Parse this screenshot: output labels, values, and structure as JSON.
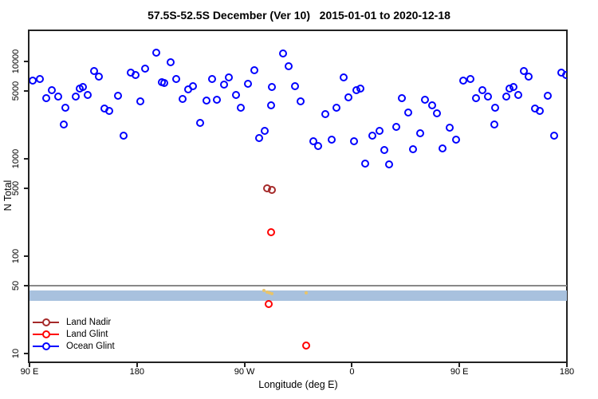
{
  "window": {
    "background": "#ffffff"
  },
  "chart_data": {
    "type": "scatter",
    "title": "57.5S-52.5S December (Ver 10)   2015-01-01 to 2020-12-18",
    "xlabel": "Longitude (deg E)",
    "ylabel": "N Total",
    "x_axis": {
      "unit": "deg E",
      "start_lon": 90,
      "span_deg": 450,
      "note": "axis wraps: 90E to 180 going eastward 450 degrees; lons 90E-180E plotted twice",
      "ticks": [
        {
          "label": "90 E",
          "offset_deg": 0
        },
        {
          "label": "180",
          "offset_deg": 90
        },
        {
          "label": "90 W",
          "offset_deg": 180
        },
        {
          "label": "0",
          "offset_deg": 270
        },
        {
          "label": "90 E",
          "offset_deg": 360
        },
        {
          "label": "180",
          "offset_deg": 450
        }
      ]
    },
    "y_axis": {
      "scale": "log",
      "range": [
        8,
        21000
      ],
      "ticks": [
        {
          "label": "10000",
          "value": 10000
        },
        {
          "label": "5000",
          "value": 5000
        },
        {
          "label": "1000",
          "value": 1000
        },
        {
          "label": "500",
          "value": 500
        },
        {
          "label": "100",
          "value": 100
        },
        {
          "label": "50",
          "value": 50
        },
        {
          "label": "10",
          "value": 10
        }
      ]
    },
    "reference_line": {
      "value": 50,
      "color": "#888888"
    },
    "band": {
      "value_from": 35,
      "value_to": 44,
      "color": "#A8C1DE"
    },
    "series": [
      {
        "name": "Land Nadir",
        "color": "#A52A2A",
        "points": [
          [
            289,
            500
          ],
          [
            293,
            480
          ]
        ]
      },
      {
        "name": "Land Glint",
        "color": "#FF0000",
        "points": [
          [
            292,
            176
          ],
          [
            290,
            32
          ],
          [
            322,
            12
          ]
        ]
      },
      {
        "name": "Ocean Glint",
        "color": "#0000FF",
        "points": [
          [
            93,
            6360
          ],
          [
            99,
            6600
          ],
          [
            104,
            4180
          ],
          [
            109,
            5070
          ],
          [
            114,
            4350
          ],
          [
            120,
            3340
          ],
          [
            119,
            2250
          ],
          [
            129,
            4350
          ],
          [
            132,
            5260
          ],
          [
            135,
            5470
          ],
          [
            139,
            4530
          ],
          [
            144,
            7970
          ],
          [
            148,
            6940
          ],
          [
            153,
            3280
          ],
          [
            157,
            3090
          ],
          [
            164,
            4440
          ],
          [
            169,
            1720
          ],
          [
            175,
            7670
          ],
          [
            179,
            7250
          ],
          [
            183,
            3890
          ],
          [
            187,
            8420
          ],
          [
            196,
            12260
          ],
          [
            201,
            6120
          ],
          [
            203,
            6000
          ],
          [
            208,
            9790
          ],
          [
            213,
            6600
          ],
          [
            218,
            4120
          ],
          [
            223,
            5170
          ],
          [
            227,
            5570
          ],
          [
            233,
            2330
          ],
          [
            238,
            3960
          ],
          [
            243,
            6600
          ],
          [
            247,
            4040
          ],
          [
            253,
            5790
          ],
          [
            257,
            6860
          ],
          [
            263,
            4530
          ],
          [
            267,
            3340
          ],
          [
            273,
            5880
          ],
          [
            278,
            8130
          ],
          [
            282,
            1630
          ],
          [
            287,
            1940
          ],
          [
            292,
            3550
          ],
          [
            293,
            5480
          ],
          [
            302,
            12030
          ],
          [
            307,
            8930
          ],
          [
            312,
            5570
          ],
          [
            317,
            3890
          ],
          [
            328,
            1510
          ],
          [
            332,
            1350
          ],
          [
            338,
            2900
          ],
          [
            343,
            1570
          ],
          [
            347,
            3340
          ],
          [
            353,
            6860
          ],
          [
            357,
            4270
          ],
          [
            2,
            1510
          ],
          [
            4,
            5070
          ],
          [
            7,
            5260
          ],
          [
            11,
            900
          ],
          [
            17,
            1720
          ],
          [
            23,
            1940
          ],
          [
            27,
            1230
          ],
          [
            31,
            875
          ],
          [
            37,
            2130
          ],
          [
            42,
            4180
          ],
          [
            47,
            3000
          ],
          [
            51,
            1260
          ],
          [
            57,
            1830
          ],
          [
            61,
            4040
          ],
          [
            67,
            3550
          ],
          [
            71,
            2950
          ],
          [
            76,
            1280
          ],
          [
            82,
            2080
          ],
          [
            87,
            1570
          ]
        ]
      }
    ],
    "unlabeled_markers": {
      "color": "#E9C46A",
      "points": [
        [
          286,
          44
        ],
        [
          289,
          43
        ],
        [
          291,
          42
        ],
        [
          293,
          41
        ],
        [
          322,
          42
        ]
      ]
    }
  },
  "legend": {
    "entries": [
      {
        "label": "Land Nadir",
        "color": "#A52A2A"
      },
      {
        "label": "Land Glint",
        "color": "#FF0000"
      },
      {
        "label": "Ocean Glint",
        "color": "#0000FF"
      }
    ]
  }
}
